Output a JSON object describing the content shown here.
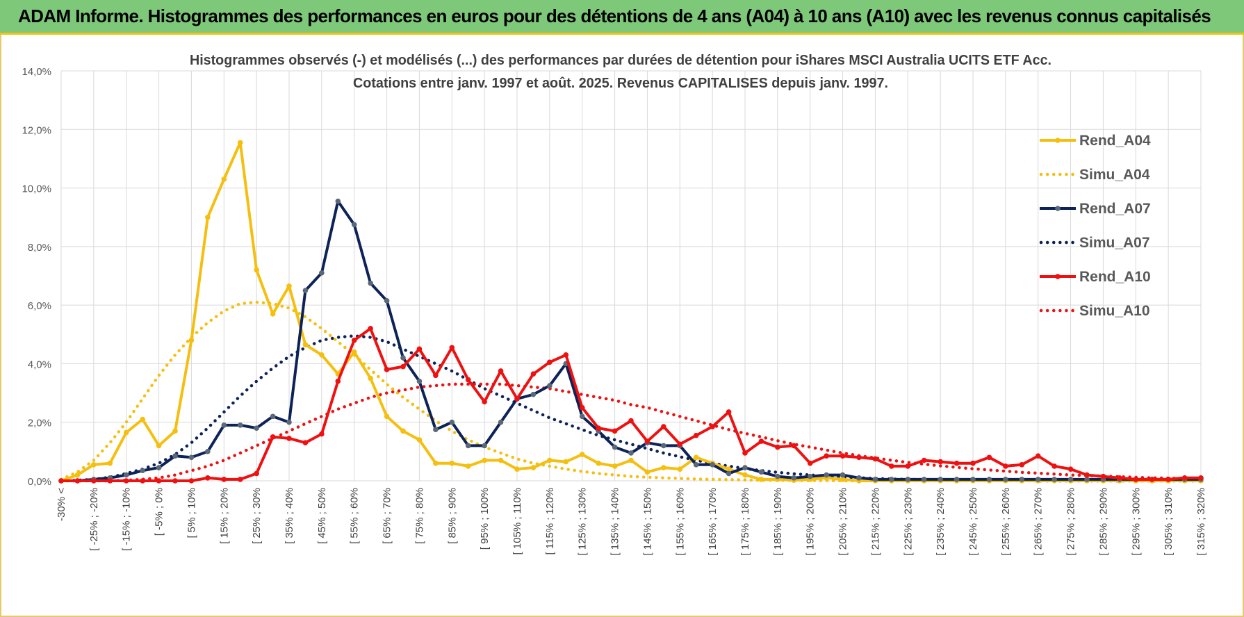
{
  "banner": {
    "title": "ADAM Informe. Histogrammes des performances en euros pour des détentions de 4 ans (A04) à 10 ans (A10) avec les revenus connus capitalisés"
  },
  "colors": {
    "a04": "#f5bf10",
    "a07": "#0d2257",
    "a07_marker": "#5a6878",
    "a10": "#ee1111",
    "banner": "#7ec87a",
    "grid": "#d9d9d9"
  },
  "chart_data": {
    "type": "line",
    "title": [
      "Histogrammes observés (-) et modélisés (...) des performances par durées de détention pour iShares MSCI Australia UCITS ETF Acc.",
      "Cotations entre janv. 1997 et août. 2025. Revenus CAPITALISES depuis janv. 1997."
    ],
    "xlabel": "",
    "ylabel": "",
    "ylim": [
      0,
      14
    ],
    "y_ticks": [
      "0,0%",
      "2,0%",
      "4,0%",
      "6,0%",
      "8,0%",
      "10,0%",
      "12,0%",
      "14,0%"
    ],
    "grid": true,
    "legend_position": "right",
    "categories": [
      "-30% <",
      "[ -30% ; -25%",
      "[ -25% ; -20%",
      "[ -20% ; -15%",
      "[ -15% ; -10%",
      "[ -10% ; -5%",
      "[ -5% ; 0%",
      "[ 0% ; 5%",
      "[ 5% ; 10%",
      "[ 10% ; 15%",
      "[ 15% ; 20%",
      "[ 20% ; 25%",
      "[ 25% ; 30%",
      "[ 30% ; 35%",
      "[ 35% ; 40%",
      "[ 40% ; 45%",
      "[ 45% ; 50%",
      "[ 50% ; 55%",
      "[ 55% ; 60%",
      "[ 60% ; 65%",
      "[ 65% ; 70%",
      "[ 70% ; 75%",
      "[ 75% ; 80%",
      "[ 80% ; 85%",
      "[ 85% ; 90%",
      "[ 90% ; 95%",
      "[ 95% ; 100%",
      "[ 100% ; 105%",
      "[ 105% ; 110%",
      "[ 110% ; 115%",
      "[ 115% ; 120%",
      "[ 120% ; 125%",
      "[ 125% ; 130%",
      "[ 130% ; 135%",
      "[ 135% ; 140%",
      "[ 140% ; 145%",
      "[ 145% ; 150%",
      "[ 150% ; 155%",
      "[ 155% ; 160%",
      "[ 160% ; 165%",
      "[ 165% ; 170%",
      "[ 170% ; 175%",
      "[ 175% ; 180%",
      "[ 180% ; 185%",
      "[ 185% ; 190%",
      "[ 190% ; 195%",
      "[ 195% ; 200%",
      "[ 200% ; 205%",
      "[ 205% ; 210%",
      "[ 210% ; 215%",
      "[ 215% ; 220%",
      "[ 220% ; 225%",
      "[ 225% ; 230%",
      "[ 230% ; 235%",
      "[ 235% ; 240%",
      "[ 240% ; 245%",
      "[ 245% ; 250%",
      "[ 250% ; 255%",
      "[ 255% ; 260%",
      "[ 260% ; 265%",
      "[ 265% ; 270%",
      "[ 270% ; 275%",
      "[ 275% ; 280%",
      "[ 280% ; 285%",
      "[ 285% ; 290%",
      "[ 290% ; 295%",
      "[ 295% ; 300%",
      "[ 300% ; 305%",
      "[ 305% ; 310%",
      "[ 310% ; 315%",
      "[ 315% ; 320%"
    ],
    "series": [
      {
        "name": "Rend_A04",
        "style": "solid",
        "color": "#f5bf10",
        "values": [
          0.0,
          0.2,
          0.55,
          0.6,
          1.65,
          2.1,
          1.2,
          1.7,
          4.8,
          9.0,
          10.3,
          11.55,
          7.2,
          5.7,
          6.65,
          4.65,
          4.3,
          3.65,
          4.4,
          3.5,
          2.2,
          1.7,
          1.4,
          0.6,
          0.6,
          0.5,
          0.7,
          0.7,
          0.4,
          0.45,
          0.7,
          0.65,
          0.9,
          0.6,
          0.5,
          0.7,
          0.3,
          0.45,
          0.4,
          0.8,
          0.6,
          0.4,
          0.2,
          0.05,
          0.05,
          0.02,
          0.05,
          0.1,
          0.05,
          0.0,
          0.0,
          0.0,
          0.0,
          0.0,
          0.0,
          0.0,
          0.0,
          0.0,
          0.0,
          0.0,
          0.0,
          0.0,
          0.0,
          0.0,
          0.0,
          0.0,
          0.0,
          0.0,
          0.0,
          0.0,
          0.0
        ]
      },
      {
        "name": "Simu_A04",
        "style": "dotted",
        "color": "#f5bf10",
        "values": [
          0.05,
          0.3,
          0.7,
          1.3,
          2.0,
          2.8,
          3.6,
          4.3,
          4.9,
          5.4,
          5.8,
          6.05,
          6.1,
          6.05,
          5.9,
          5.6,
          5.2,
          4.75,
          4.3,
          3.8,
          3.3,
          2.85,
          2.45,
          2.05,
          1.7,
          1.4,
          1.15,
          0.95,
          0.75,
          0.6,
          0.5,
          0.4,
          0.32,
          0.25,
          0.2,
          0.15,
          0.12,
          0.1,
          0.08,
          0.06,
          0.05,
          0.04,
          0.03,
          0.02,
          0.02,
          0.01,
          0.01,
          0.01,
          0.0,
          0.0,
          0.0,
          0.0,
          0.0,
          0.0,
          0.0,
          0.0,
          0.0,
          0.0,
          0.0,
          0.0,
          0.0,
          0.0,
          0.0,
          0.0,
          0.0,
          0.0,
          0.0,
          0.0,
          0.0,
          0.0,
          0.0
        ]
      },
      {
        "name": "Rend_A07",
        "style": "solid",
        "color": "#0d2257",
        "values": [
          0.0,
          0.0,
          0.05,
          0.1,
          0.2,
          0.35,
          0.45,
          0.85,
          0.8,
          1.0,
          1.9,
          1.9,
          1.8,
          2.2,
          2.0,
          6.5,
          7.1,
          9.55,
          8.75,
          6.75,
          6.15,
          4.2,
          3.4,
          1.75,
          2.0,
          1.2,
          1.2,
          2.0,
          2.8,
          2.95,
          3.25,
          4.0,
          2.2,
          1.7,
          1.15,
          0.95,
          1.3,
          1.2,
          1.2,
          0.55,
          0.55,
          0.25,
          0.45,
          0.3,
          0.15,
          0.1,
          0.15,
          0.2,
          0.2,
          0.1,
          0.05,
          0.05,
          0.05,
          0.05,
          0.05,
          0.05,
          0.05,
          0.05,
          0.05,
          0.05,
          0.05,
          0.05,
          0.05,
          0.05,
          0.05,
          0.05,
          0.05,
          0.05,
          0.05,
          0.05,
          0.05
        ]
      },
      {
        "name": "Simu_A07",
        "style": "dotted",
        "color": "#0d2257",
        "values": [
          0.0,
          0.02,
          0.05,
          0.12,
          0.25,
          0.4,
          0.6,
          0.9,
          1.3,
          1.8,
          2.35,
          2.9,
          3.4,
          3.85,
          4.25,
          4.55,
          4.8,
          4.9,
          4.95,
          4.9,
          4.75,
          4.5,
          4.25,
          4.0,
          3.75,
          3.45,
          3.15,
          2.9,
          2.65,
          2.4,
          2.15,
          1.95,
          1.75,
          1.55,
          1.4,
          1.25,
          1.1,
          0.95,
          0.82,
          0.7,
          0.6,
          0.5,
          0.42,
          0.35,
          0.29,
          0.24,
          0.2,
          0.16,
          0.13,
          0.1,
          0.08,
          0.06,
          0.05,
          0.04,
          0.03,
          0.02,
          0.02,
          0.01,
          0.01,
          0.01,
          0.0,
          0.0,
          0.0,
          0.0,
          0.0,
          0.0,
          0.0,
          0.0,
          0.0,
          0.0,
          0.0
        ]
      },
      {
        "name": "Rend_A10",
        "style": "solid",
        "color": "#ee1111",
        "values": [
          0.0,
          0.0,
          0.0,
          0.0,
          0.0,
          0.0,
          0.0,
          0.0,
          0.0,
          0.1,
          0.05,
          0.05,
          0.25,
          1.5,
          1.45,
          1.3,
          1.6,
          3.4,
          4.8,
          5.2,
          3.8,
          3.9,
          4.5,
          3.6,
          4.55,
          3.45,
          2.7,
          3.75,
          2.8,
          3.65,
          4.05,
          4.3,
          2.5,
          1.8,
          1.7,
          2.05,
          1.35,
          1.85,
          1.25,
          1.55,
          1.85,
          2.35,
          0.95,
          1.35,
          1.15,
          1.2,
          0.6,
          0.85,
          0.85,
          0.8,
          0.75,
          0.5,
          0.5,
          0.7,
          0.65,
          0.6,
          0.6,
          0.8,
          0.5,
          0.55,
          0.85,
          0.5,
          0.4,
          0.2,
          0.15,
          0.1,
          0.05,
          0.05,
          0.05,
          0.1,
          0.1
        ]
      },
      {
        "name": "Simu_A10",
        "style": "dotted",
        "color": "#ee1111",
        "values": [
          0.0,
          0.0,
          0.0,
          0.0,
          0.02,
          0.05,
          0.1,
          0.2,
          0.35,
          0.5,
          0.7,
          0.95,
          1.2,
          1.45,
          1.7,
          1.95,
          2.2,
          2.45,
          2.65,
          2.85,
          3.0,
          3.1,
          3.2,
          3.25,
          3.3,
          3.3,
          3.3,
          3.3,
          3.25,
          3.2,
          3.15,
          3.05,
          2.95,
          2.85,
          2.75,
          2.6,
          2.5,
          2.35,
          2.2,
          2.05,
          1.9,
          1.75,
          1.62,
          1.5,
          1.37,
          1.25,
          1.15,
          1.05,
          0.95,
          0.86,
          0.78,
          0.7,
          0.63,
          0.57,
          0.51,
          0.46,
          0.41,
          0.37,
          0.33,
          0.29,
          0.26,
          0.23,
          0.2,
          0.18,
          0.16,
          0.14,
          0.12,
          0.1,
          0.09,
          0.08,
          0.07
        ]
      }
    ]
  }
}
